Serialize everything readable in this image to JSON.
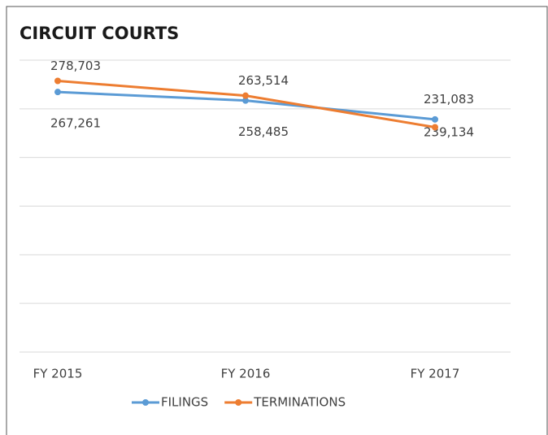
{
  "chart_data": {
    "type": "line",
    "title": "CIRCUIT COURTS",
    "categories": [
      "FY 2015",
      "FY 2016",
      "FY 2017"
    ],
    "series": [
      {
        "name": "FILINGS",
        "color": "#5b9bd5",
        "values": [
          267261,
          258485,
          239134
        ],
        "value_labels": [
          "267,261",
          "258,485",
          "239,134"
        ]
      },
      {
        "name": "TERMINATIONS",
        "color": "#ed7d31",
        "values": [
          278703,
          263514,
          231083
        ],
        "value_labels": [
          "278,703",
          "263,514",
          "231,083"
        ]
      }
    ],
    "ylim": [
      0,
      300000
    ],
    "yticks": [
      0,
      50000,
      100000,
      150000,
      200000,
      250000,
      300000
    ],
    "grid": true,
    "legend": "bottom"
  }
}
